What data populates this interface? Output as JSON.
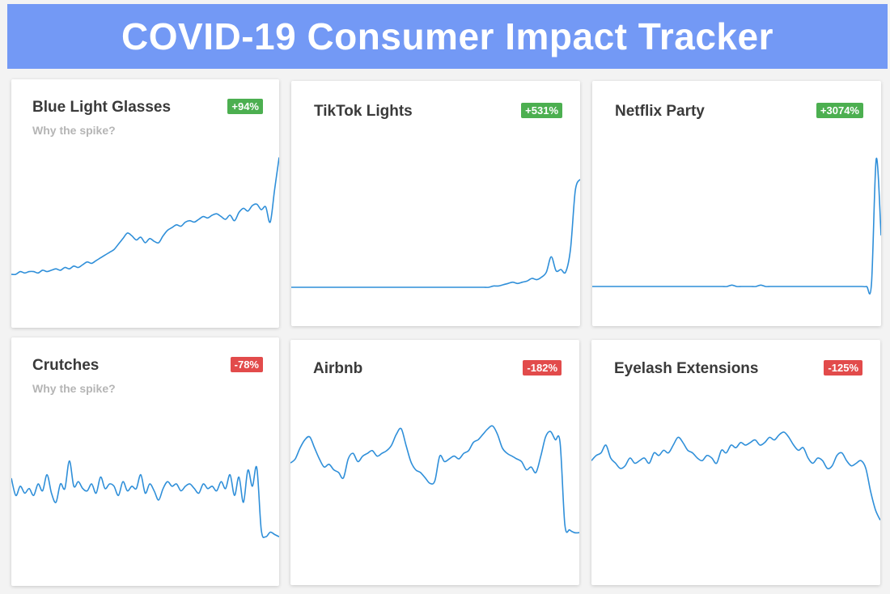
{
  "header": {
    "title": "COVID-19 Consumer Impact Tracker"
  },
  "colors": {
    "banner": "#7399f5",
    "line": "#2f8fd9",
    "positive": "#4caf50",
    "negative": "#e24b4b"
  },
  "cards": [
    {
      "title": "Blue Light Glasses",
      "subtitle": "Why the spike?",
      "badge": "+94%",
      "trend": "positive"
    },
    {
      "title": "TikTok Lights",
      "subtitle": "",
      "badge": "+531%",
      "trend": "positive"
    },
    {
      "title": "Netflix Party",
      "subtitle": "",
      "badge": "+3074%",
      "trend": "positive"
    },
    {
      "title": "Crutches",
      "subtitle": "Why the spike?",
      "badge": "-78%",
      "trend": "negative"
    },
    {
      "title": "Airbnb",
      "subtitle": "",
      "badge": "-182%",
      "trend": "negative"
    },
    {
      "title": "Eyelash Extensions",
      "subtitle": "",
      "badge": "-125%",
      "trend": "negative"
    }
  ],
  "chart_data": [
    {
      "type": "line",
      "title": "Blue Light Glasses",
      "ylim": [
        0,
        100
      ],
      "grid": false,
      "x": [
        0,
        1,
        2,
        3,
        4,
        5,
        6,
        7,
        8,
        9,
        10,
        11,
        12,
        13,
        14,
        15,
        16,
        17,
        18,
        19,
        20,
        21,
        22,
        23,
        24,
        25,
        26,
        27,
        28,
        29,
        30,
        31,
        32,
        33,
        34,
        35,
        36,
        37,
        38,
        39,
        40,
        41,
        42,
        43,
        44,
        45,
        46,
        47,
        48,
        49,
        50,
        51,
        52,
        53,
        54,
        55,
        56,
        57,
        58,
        59,
        60
      ],
      "y": [
        10,
        10,
        12,
        11,
        12,
        12,
        11,
        13,
        12,
        13,
        14,
        13,
        15,
        14,
        16,
        15,
        17,
        19,
        18,
        20,
        22,
        24,
        26,
        28,
        32,
        36,
        40,
        38,
        35,
        37,
        33,
        36,
        34,
        33,
        38,
        42,
        44,
        46,
        45,
        48,
        49,
        48,
        50,
        52,
        51,
        53,
        54,
        52,
        50,
        53,
        49,
        55,
        58,
        56,
        60,
        61,
        57,
        59,
        48,
        72,
        95
      ]
    },
    {
      "type": "line",
      "title": "TikTok Lights",
      "ylim": [
        0,
        100
      ],
      "grid": false,
      "x": [
        0,
        1,
        2,
        3,
        4,
        5,
        6,
        7,
        8,
        9,
        10,
        11,
        12,
        13,
        14,
        15,
        16,
        17,
        18,
        19,
        20,
        21,
        22,
        23,
        24,
        25,
        26,
        27,
        28,
        29,
        30,
        31,
        32,
        33,
        34,
        35,
        36,
        37,
        38,
        39,
        40,
        41,
        42,
        43,
        44,
        45,
        46,
        47,
        48,
        49,
        50,
        51,
        52,
        53,
        54,
        55,
        56,
        57,
        58,
        59,
        60
      ],
      "y": [
        0,
        0,
        0,
        0,
        0,
        0,
        0,
        0,
        0,
        0,
        0,
        0,
        0,
        0,
        0,
        0,
        0,
        0,
        0,
        0,
        0,
        0,
        0,
        0,
        0,
        0,
        0,
        0,
        0,
        0,
        0,
        0,
        0,
        0,
        0,
        0,
        0,
        0,
        0,
        0,
        0,
        0,
        1,
        1,
        2,
        3,
        4,
        3,
        4,
        5,
        7,
        6,
        8,
        12,
        24,
        13,
        14,
        12,
        30,
        76,
        85
      ]
    },
    {
      "type": "line",
      "title": "Netflix Party",
      "ylim": [
        0,
        100
      ],
      "grid": false,
      "x": [
        0,
        1,
        2,
        3,
        4,
        5,
        6,
        7,
        8,
        9,
        10,
        11,
        12,
        13,
        14,
        15,
        16,
        17,
        18,
        19,
        20,
        21,
        22,
        23,
        24,
        25,
        26,
        27,
        28,
        29,
        30,
        31,
        32,
        33,
        34,
        35,
        36,
        37,
        38,
        39,
        40,
        41,
        42,
        43,
        44,
        45,
        46,
        47,
        48,
        49,
        50,
        51,
        52,
        53,
        54,
        55,
        56,
        57,
        58,
        59,
        60
      ],
      "y": [
        0,
        0,
        0,
        0,
        0,
        0,
        0,
        0,
        0,
        0,
        0,
        0,
        0,
        0,
        0,
        0,
        0,
        0,
        0,
        0,
        0,
        0,
        0,
        0,
        0,
        0,
        0,
        0,
        0,
        1,
        0,
        0,
        0,
        0,
        0,
        1,
        0,
        0,
        0,
        0,
        0,
        0,
        0,
        0,
        0,
        0,
        0,
        0,
        0,
        0,
        0,
        0,
        0,
        0,
        0,
        0,
        0,
        0,
        2,
        95,
        38
      ]
    },
    {
      "type": "line",
      "title": "Crutches",
      "ylim": [
        0,
        100
      ],
      "grid": false,
      "x": [
        0,
        1,
        2,
        3,
        4,
        5,
        6,
        7,
        8,
        9,
        10,
        11,
        12,
        13,
        14,
        15,
        16,
        17,
        18,
        19,
        20,
        21,
        22,
        23,
        24,
        25,
        26,
        27,
        28,
        29,
        30,
        31,
        32,
        33,
        34,
        35,
        36,
        37,
        38,
        39,
        40,
        41,
        42,
        43,
        44,
        45,
        46,
        47,
        48,
        49,
        50,
        51,
        52,
        53,
        54,
        55,
        56,
        57,
        58,
        59,
        60
      ],
      "y": [
        55,
        40,
        48,
        42,
        46,
        40,
        50,
        44,
        58,
        42,
        34,
        50,
        46,
        70,
        48,
        52,
        46,
        44,
        50,
        42,
        56,
        46,
        50,
        48,
        40,
        52,
        44,
        48,
        46,
        58,
        42,
        50,
        44,
        36,
        46,
        52,
        48,
        50,
        44,
        48,
        50,
        46,
        42,
        50,
        46,
        48,
        44,
        52,
        46,
        58,
        40,
        56,
        34,
        62,
        48,
        64,
        10,
        4,
        8,
        6,
        4
      ]
    },
    {
      "type": "line",
      "title": "Airbnb",
      "ylim": [
        0,
        100
      ],
      "grid": false,
      "x": [
        0,
        1,
        2,
        3,
        4,
        5,
        6,
        7,
        8,
        9,
        10,
        11,
        12,
        13,
        14,
        15,
        16,
        17,
        18,
        19,
        20,
        21,
        22,
        23,
        24,
        25,
        26,
        27,
        28,
        29,
        30,
        31,
        32,
        33,
        34,
        35,
        36,
        37,
        38,
        39,
        40,
        41,
        42,
        43,
        44,
        45,
        46,
        47,
        48,
        49,
        50,
        51,
        52,
        53,
        54,
        55,
        56,
        57,
        58,
        59,
        60
      ],
      "y": [
        55,
        58,
        66,
        72,
        74,
        66,
        58,
        52,
        54,
        50,
        48,
        44,
        58,
        62,
        56,
        60,
        62,
        64,
        60,
        62,
        64,
        68,
        76,
        80,
        68,
        56,
        50,
        48,
        44,
        40,
        42,
        60,
        56,
        58,
        60,
        58,
        62,
        64,
        70,
        72,
        76,
        80,
        82,
        76,
        66,
        62,
        60,
        58,
        56,
        50,
        52,
        48,
        60,
        74,
        78,
        72,
        70,
        10,
        6,
        4,
        4
      ]
    },
    {
      "type": "line",
      "title": "Eyelash Extensions",
      "ylim": [
        0,
        100
      ],
      "grid": false,
      "x": [
        0,
        1,
        2,
        3,
        4,
        5,
        6,
        7,
        8,
        9,
        10,
        11,
        12,
        13,
        14,
        15,
        16,
        17,
        18,
        19,
        20,
        21,
        22,
        23,
        24,
        25,
        26,
        27,
        28,
        29,
        30,
        31,
        32,
        33,
        34,
        35,
        36,
        37,
        38,
        39,
        40,
        41,
        42,
        43,
        44,
        45,
        46,
        47,
        48,
        49,
        50,
        51,
        52,
        53,
        54,
        55,
        56,
        57,
        58,
        59,
        60
      ],
      "y": [
        58,
        62,
        64,
        70,
        60,
        56,
        52,
        54,
        60,
        56,
        58,
        60,
        56,
        64,
        62,
        66,
        64,
        70,
        76,
        72,
        66,
        64,
        60,
        58,
        62,
        60,
        56,
        66,
        64,
        70,
        68,
        72,
        70,
        72,
        74,
        70,
        72,
        76,
        74,
        78,
        80,
        76,
        70,
        66,
        68,
        60,
        56,
        60,
        58,
        52,
        54,
        62,
        64,
        58,
        54,
        56,
        58,
        52,
        34,
        20,
        12
      ]
    }
  ]
}
